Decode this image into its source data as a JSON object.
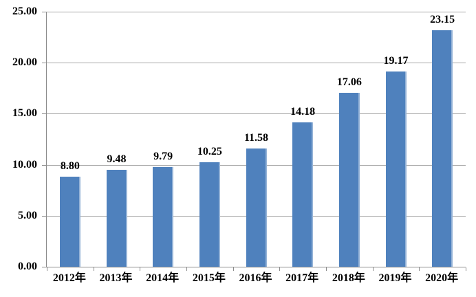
{
  "chart_data": {
    "type": "bar",
    "categories": [
      "2012年",
      "2013年",
      "2014年",
      "2015年",
      "2016年",
      "2017年",
      "2018年",
      "2019年",
      "2020年"
    ],
    "values": [
      8.8,
      9.48,
      9.79,
      10.25,
      11.58,
      14.18,
      17.06,
      19.17,
      23.15
    ],
    "value_labels": [
      "8.80",
      "9.48",
      "9.79",
      "10.25",
      "11.58",
      "14.18",
      "17.06",
      "19.17",
      "23.15"
    ],
    "title": "",
    "xlabel": "",
    "ylabel": "",
    "ylim": [
      0,
      25
    ],
    "ytick_step": 5,
    "ytick_labels": [
      "0.00",
      "5.00",
      "10.00",
      "15.00",
      "20.00",
      "25.00"
    ],
    "grid": true,
    "legend": false,
    "colors": {
      "bar_fill": "#4F81BD",
      "bar_highlight": "#95B3D7",
      "gridline": "#A6A6A6",
      "axis": "#8C8C8C",
      "text": "#000000",
      "background": "#FFFFFF"
    }
  }
}
